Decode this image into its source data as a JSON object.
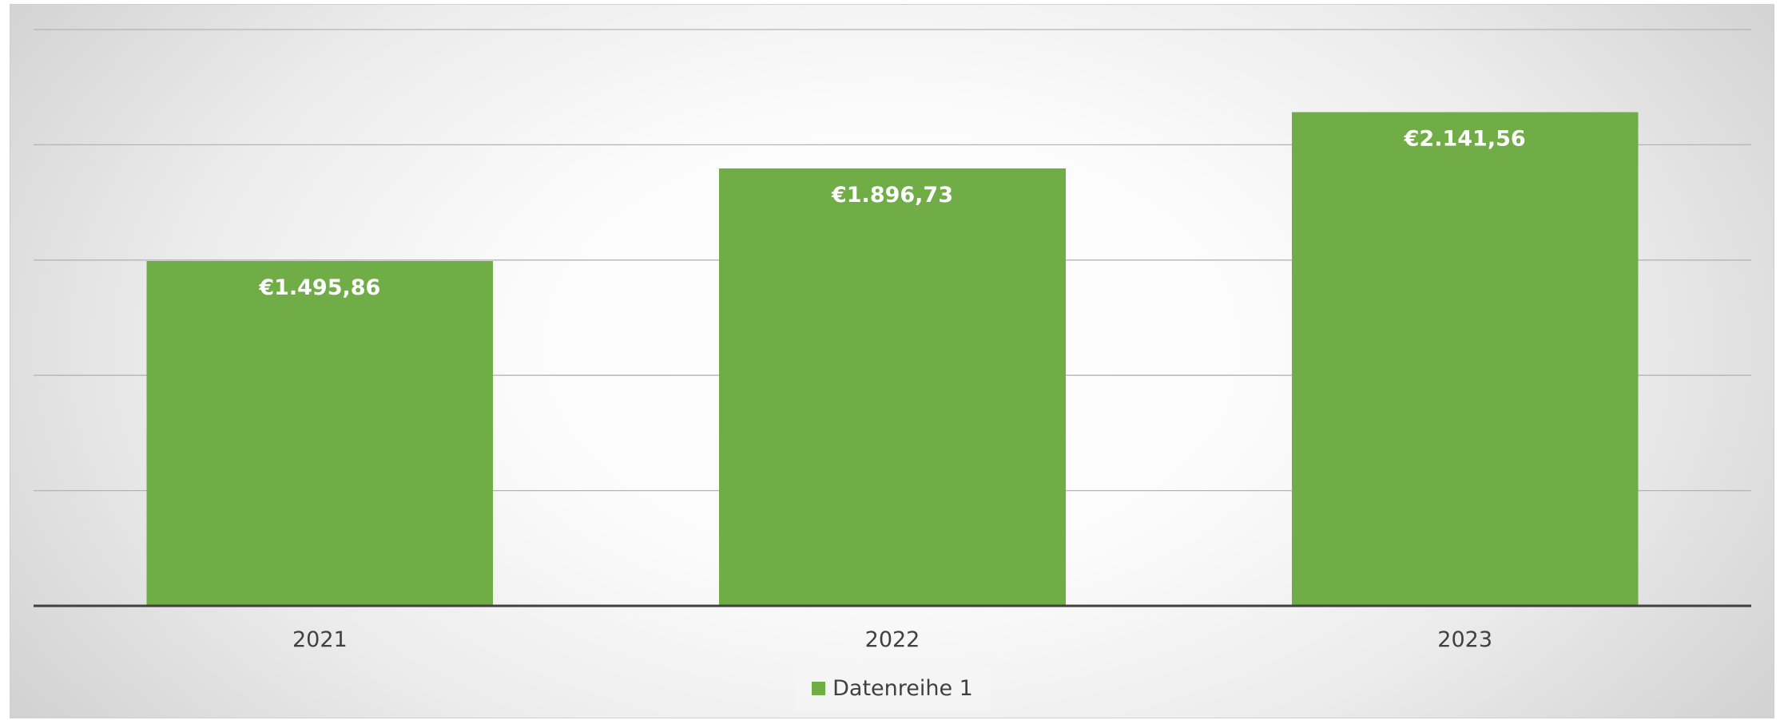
{
  "chart_data": {
    "type": "bar",
    "categories": [
      "2021",
      "2022",
      "2023"
    ],
    "series": [
      {
        "name": "Datenreihe 1",
        "values": [
          1495.86,
          1896.73,
          2141.56
        ],
        "labels": [
          "€1.495,86",
          "€1.896,73",
          "€2.141,56"
        ],
        "color": "#70ad47"
      }
    ],
    "title": "",
    "xlabel": "",
    "ylabel": "",
    "ylim": [
      0,
      2500
    ],
    "gridline_step": 500,
    "grid": true,
    "y_tick_labels_shown": false,
    "legend_position": "bottom"
  }
}
